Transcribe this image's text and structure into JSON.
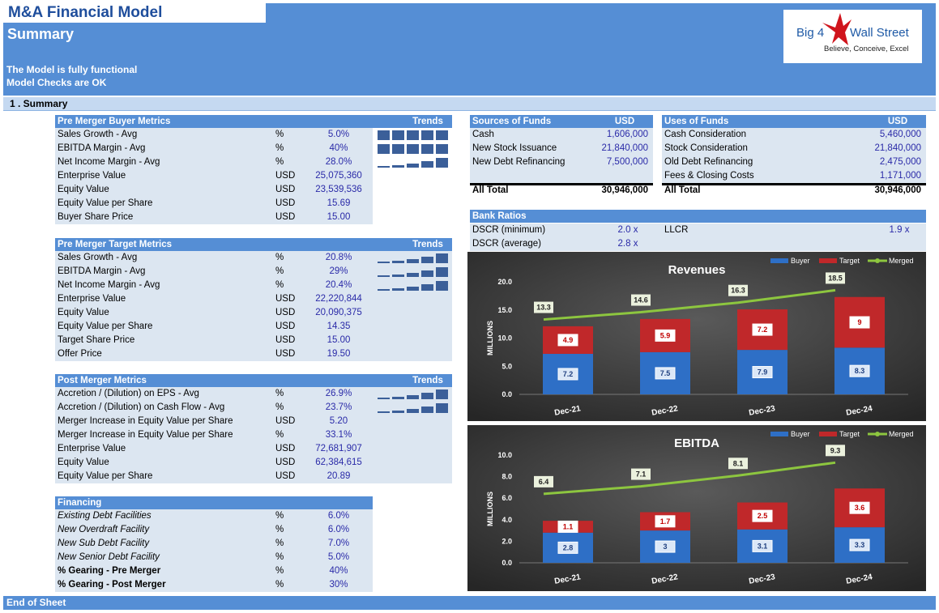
{
  "header": {
    "title": "M&A Financial Model",
    "subtitle": "Summary",
    "status": [
      "The Model is fully functional",
      "Model Checks are OK"
    ]
  },
  "logo": {
    "left": "Big 4",
    "right": "Wall Street",
    "tagline": "Believe, Conceive, Excel"
  },
  "section": "1 . Summary",
  "buyer": {
    "title": "Pre Merger Buyer Metrics",
    "trends": "Trends",
    "rows": [
      [
        "Sales Growth - Avg",
        "%",
        "5.0%"
      ],
      [
        "EBITDA Margin - Avg",
        "%",
        "40%"
      ],
      [
        "Net Income Margin - Avg",
        "%",
        "28.0%"
      ],
      [
        "Enterprise Value",
        "USD",
        "25,075,360"
      ],
      [
        "Equity Value",
        "USD",
        "23,539,536"
      ],
      [
        "Equity Value per Share",
        "USD",
        "15.69"
      ],
      [
        "Buyer Share Price",
        "USD",
        "15.00"
      ]
    ]
  },
  "target": {
    "title": "Pre Merger Target Metrics",
    "trends": "Trends",
    "rows": [
      [
        "Sales Growth - Avg",
        "%",
        "20.8%"
      ],
      [
        "EBITDA Margin - Avg",
        "%",
        "29%"
      ],
      [
        "Net Income Margin - Avg",
        "%",
        "20.4%"
      ],
      [
        "Enterprise Value",
        "USD",
        "22,220,844"
      ],
      [
        "Equity Value",
        "USD",
        "20,090,375"
      ],
      [
        "Equity Value per Share",
        "USD",
        "14.35"
      ],
      [
        "Target Share Price",
        "USD",
        "15.00"
      ],
      [
        "Offer Price",
        "USD",
        "19.50"
      ]
    ]
  },
  "post": {
    "title": "Post Merger Metrics",
    "trends": "Trends",
    "rows": [
      [
        "Accretion / (Dilution) on EPS - Avg",
        "%",
        "26.9%"
      ],
      [
        "Accretion / (Dilution) on Cash Flow - Avg",
        "%",
        "23.7%"
      ],
      [
        "Merger Increase in Equity Value per Share",
        "USD",
        "5.20"
      ],
      [
        "Merger Increase in Equity Value per Share",
        "%",
        "33.1%"
      ],
      [
        "Enterprise Value",
        "USD",
        "72,681,907"
      ],
      [
        "Equity Value",
        "USD",
        "62,384,615"
      ],
      [
        "Equity Value per Share",
        "USD",
        "20.89"
      ]
    ]
  },
  "financing": {
    "title": "Financing",
    "rows": [
      [
        "Existing Debt Facilities",
        "%",
        "6.0%"
      ],
      [
        "New Overdraft Facility",
        "%",
        "6.0%"
      ],
      [
        "New Sub Debt Facility",
        "%",
        "7.0%"
      ],
      [
        "New Senior Debt Facility",
        "%",
        "5.0%"
      ],
      [
        "% Gearing - Pre Merger",
        "%",
        "40%"
      ],
      [
        "% Gearing - Post Merger",
        "%",
        "30%"
      ]
    ]
  },
  "sources": {
    "title": "Sources of Funds",
    "unit": "USD",
    "rows": [
      [
        "Cash",
        "1,606,000"
      ],
      [
        "New Stock Issuance",
        "21,840,000"
      ],
      [
        "New Debt Refinancing",
        "7,500,000"
      ]
    ],
    "total": [
      "All Total",
      "30,946,000"
    ]
  },
  "uses": {
    "title": "Uses of Funds",
    "unit": "USD",
    "rows": [
      [
        "Cash Consideration",
        "5,460,000"
      ],
      [
        "Stock Consideration",
        "21,840,000"
      ],
      [
        "Old Debt Refinancing",
        "2,475,000"
      ],
      [
        "Fees & Closing Costs",
        "1,171,000"
      ]
    ],
    "total": [
      "All Total",
      "30,946,000"
    ]
  },
  "bank": {
    "title": "Bank Ratios",
    "rows": [
      [
        "DSCR (minimum)",
        "2.0 x",
        "LLCR",
        "1.9 x"
      ],
      [
        "DSCR (average)",
        "2.8 x"
      ]
    ]
  },
  "chart_data": [
    {
      "type": "bar",
      "stacked": true,
      "title": "Revenues",
      "ylabel": "MILLIONS",
      "legend": "top-right",
      "categories": [
        "Dec-21",
        "Dec-22",
        "Dec-23",
        "Dec-24"
      ],
      "series": [
        {
          "name": "Buyer",
          "color": "#2e6fc6",
          "values": [
            7.2,
            7.5,
            7.9,
            8.3
          ]
        },
        {
          "name": "Target",
          "color": "#c0282a",
          "values": [
            4.9,
            5.9,
            7.2,
            9.0
          ]
        },
        {
          "name": "Merged",
          "type": "line",
          "color": "#8dc63f",
          "values": [
            13.3,
            14.6,
            16.3,
            18.5
          ]
        }
      ],
      "ylim": [
        0,
        20
      ],
      "yticks": [
        {
          "value": 0,
          "label": "0.0"
        },
        {
          "value": 5,
          "label": "5.0"
        },
        {
          "value": 10,
          "label": "10.0"
        },
        {
          "value": 15,
          "label": "15.0"
        },
        {
          "value": 20,
          "label": "20.0"
        }
      ]
    },
    {
      "type": "bar",
      "stacked": true,
      "title": "EBITDA",
      "ylabel": "MILLIONS",
      "legend": "top-right",
      "categories": [
        "Dec-21",
        "Dec-22",
        "Dec-23",
        "Dec-24"
      ],
      "series": [
        {
          "name": "Buyer",
          "color": "#2e6fc6",
          "values": [
            2.8,
            3.0,
            3.1,
            3.3
          ]
        },
        {
          "name": "Target",
          "color": "#c0282a",
          "values": [
            1.1,
            1.7,
            2.5,
            3.6
          ]
        },
        {
          "name": "Merged",
          "type": "line",
          "color": "#8dc63f",
          "values": [
            6.4,
            7.1,
            8.1,
            9.3
          ]
        }
      ],
      "ylim": [
        0,
        10
      ],
      "yticks": [
        {
          "value": 0,
          "label": "0.0"
        },
        {
          "value": 2,
          "label": "2.0"
        },
        {
          "value": 4,
          "label": "4.0"
        },
        {
          "value": 6,
          "label": "6.0"
        },
        {
          "value": 8,
          "label": "8.0"
        },
        {
          "value": 10,
          "label": "10.0"
        }
      ]
    }
  ]
}
